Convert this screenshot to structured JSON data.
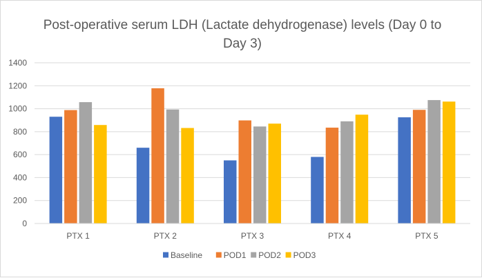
{
  "chart_data": {
    "type": "bar",
    "title": "Post-operative serum LDH (Lactate dehydrogenase) levels (Day 0 to Day 3)",
    "categories": [
      "PTX 1",
      "PTX 2",
      "PTX 3",
      "PTX 4",
      "PTX 5"
    ],
    "series": [
      {
        "name": "Baseline",
        "color": "#4472c4",
        "values": [
          930,
          660,
          550,
          580,
          925
        ]
      },
      {
        "name": "POD1",
        "color": "#ed7d31",
        "values": [
          988,
          1178,
          898,
          835,
          990
        ]
      },
      {
        "name": "POD2",
        "color": "#a5a5a5",
        "values": [
          1057,
          993,
          845,
          890,
          1075
        ]
      },
      {
        "name": "POD3",
        "color": "#ffc000",
        "values": [
          858,
          832,
          870,
          948,
          1062
        ]
      }
    ],
    "ylim": [
      0,
      1400
    ],
    "yticks": [
      "0",
      "200",
      "400",
      "600",
      "800",
      "1000",
      "1200",
      "1400"
    ],
    "grid": true,
    "legend_position": "bottom"
  }
}
